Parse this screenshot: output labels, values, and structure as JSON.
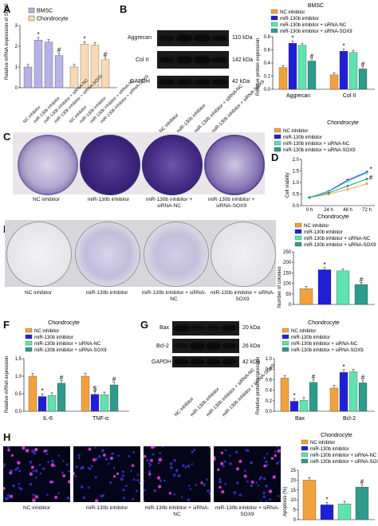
{
  "panels": {
    "A": {
      "label": "A",
      "legend": [
        "BMSC",
        "Chondrocyte"
      ],
      "colors": [
        "#b7b2e6",
        "#f7d9b3"
      ],
      "ylabel": "Relative mRNA expression of SOX9",
      "ticks": [
        "0",
        "1",
        "2",
        "3"
      ],
      "xlabels": [
        "NC inhibitor",
        "miR-130b inhibitor",
        "miR-130b inhibitor + siRNA-NC",
        "miR-130b inhibitor + siRNA-SOX9",
        "NC inhibitor",
        "miR-130b inhibitor",
        "miR-130b inhibitor + siRNA-NC",
        "miR-130b inhibitor + siRNA-SOX9"
      ],
      "marks": [
        "*",
        "#",
        "*",
        "#"
      ]
    },
    "B": {
      "label": "B",
      "blot_labels": [
        "Aggrecan",
        "Col II",
        "GAPDH"
      ],
      "kda": [
        "110 kDa",
        "142 kDa",
        "42 kDa"
      ],
      "lanes": [
        "NC inhibitor",
        "miR-130b inhibitor",
        "miR-130b inhibitor + siRNA-NC",
        "miR-130b inhibitor + siRNA-SOX9"
      ],
      "chart_title": "BMSC",
      "legend": [
        "NC inhibitor",
        "miR-130b inhibitor",
        "miR-130b inhibitor + siRNA-NC",
        "miR-130b inhibitor + siRNA-SOX9"
      ],
      "ylabel": "Relative protein expression",
      "ticks": [
        "0.0",
        "0.2",
        "0.4",
        "0.6",
        "0.8"
      ],
      "groups": [
        "Aggrecan",
        "Col II"
      ],
      "marks": [
        "*",
        "#",
        "*",
        "#"
      ]
    },
    "C": {
      "label": "C",
      "captions": [
        "NC inhibitor",
        "miR-130b inhibitor",
        "miR-130b inhibitor + siRNA-NC",
        "miR-130b inhibitor + siRNA-SOX9"
      ]
    },
    "D": {
      "label": "D",
      "title": "Chondrocyte",
      "legend": [
        "NC inhibitor",
        "miR-130b inhibitor",
        "miR-130b inhibitor + siRNA-NC",
        "miR-130b inhibitor + siRNA-SOX9"
      ],
      "ylabel": "Cell viability",
      "ticks": [
        "0.0",
        "0.5",
        "1.0",
        "1.5",
        "2.0"
      ],
      "xticks": [
        "0 h",
        "24 h",
        "48 h",
        "72 h"
      ],
      "marks": [
        "*",
        "#"
      ]
    },
    "E": {
      "label": "E",
      "captions": [
        "NC inhibitor",
        "miR-130b inhibitor",
        "miR-130b inhibitor + siRNA-NC",
        "miR-130b inhibitor + siRNA-SOX9"
      ],
      "chart_title": "Chondrocyte",
      "legend": [
        "NC inhibitor",
        "miR-130b inhibitor",
        "miR-130b inhibitor + siRNA-NC",
        "miR-130b inhibitor + siRNA-SOX9"
      ],
      "ylabel": "Number of colonies",
      "ticks": [
        "0",
        "50",
        "100",
        "150",
        "200",
        "250"
      ],
      "marks": [
        "*",
        "#"
      ]
    },
    "F": {
      "label": "F",
      "title": "Chondrocyte",
      "legend": [
        "NC inhibitor",
        "miR-130b inhibitor",
        "miR-130b inhibitor + siRNA-NC",
        "miR-130b inhibitor + siRNA-SOX9"
      ],
      "ylabel": "Relative mRNA expression",
      "ticks": [
        "0.0",
        "0.5",
        "1.0",
        "1.5"
      ],
      "groups": [
        "IL-6",
        "TNF-α"
      ],
      "marks": [
        "*",
        "#",
        "$",
        "#"
      ]
    },
    "G": {
      "label": "G",
      "blot_labels": [
        "Bax",
        "Bcl-2",
        "GAPDH"
      ],
      "kda": [
        "20 kDa",
        "26 kDa",
        "42 kDa"
      ],
      "lanes": [
        "NC inhibitor",
        "miR-130b inhibitor",
        "miR-130b inhibitor + siRNA-NC",
        "miR-130b inhibitor + siRNA-SOX9"
      ],
      "chart_title": "Chondrocyte",
      "legend": [
        "NC inhibitor",
        "miR-130b inhibitor",
        "miR-130b inhibitor + siRNA-NC",
        "miR-130b inhibitor + siRNA-SOX9"
      ],
      "ylabel": "Relative protein expression",
      "ticks": [
        "0.0",
        "0.2",
        "0.4",
        "0.6",
        "0.8",
        "1.0"
      ],
      "groups": [
        "Bax",
        "Bcl-2"
      ],
      "marks": [
        "*",
        "#",
        "*",
        "#"
      ]
    },
    "H": {
      "label": "H",
      "captions": [
        "NC inhibitor",
        "miR-130b inhibitor",
        "miR-130b inhibitor + siRNA-NC",
        "miR-130b inhibitor + siRNA-SOX9"
      ],
      "chart_title": "Chondrocyte",
      "legend": [
        "NC inhibitor",
        "miR-130b inhibitor",
        "miR-130b inhibitor + siRNA-NC",
        "miR-130b inhibitor + siRNA-SOX9"
      ],
      "ylabel": "Apoptosis (%)",
      "ticks": [
        "0",
        "5",
        "10",
        "15",
        "20",
        "25"
      ],
      "marks": [
        "*",
        "#"
      ]
    }
  },
  "colors": {
    "nc": "#f2a23c",
    "mir": "#1f1fd6",
    "mir_nc": "#5fe3b0",
    "mir_sox9": "#2e9c8c"
  },
  "chart_data": [
    {
      "type": "bar",
      "id": "A",
      "categories": [
        "NC inhibitor",
        "miR-130b inhibitor",
        "miR-130b inhibitor + siRNA-NC",
        "miR-130b inhibitor + siRNA-SOX9"
      ],
      "series": [
        {
          "name": "BMSC",
          "values": [
            1.0,
            2.3,
            2.2,
            1.55
          ]
        },
        {
          "name": "Chondrocyte",
          "values": [
            1.0,
            2.1,
            2.05,
            1.35
          ]
        }
      ],
      "ylabel": "Relative mRNA expression of SOX9",
      "ylim": [
        0,
        3
      ]
    },
    {
      "type": "bar",
      "id": "B",
      "title": "BMSC",
      "categories": [
        "Aggrecan",
        "Col II"
      ],
      "series": [
        {
          "name": "NC inhibitor",
          "values": [
            0.33,
            0.22
          ]
        },
        {
          "name": "miR-130b inhibitor",
          "values": [
            0.7,
            0.58
          ]
        },
        {
          "name": "miR-130b inhibitor + siRNA-NC",
          "values": [
            0.67,
            0.56
          ]
        },
        {
          "name": "miR-130b inhibitor + siRNA-SOX9",
          "values": [
            0.43,
            0.31
          ]
        }
      ],
      "ylabel": "Relative protein expression",
      "ylim": [
        0,
        0.8
      ]
    },
    {
      "type": "line",
      "id": "D",
      "title": "Chondrocyte",
      "x": [
        "0 h",
        "24 h",
        "48 h",
        "72 h"
      ],
      "series": [
        {
          "name": "NC inhibitor",
          "values": [
            0.35,
            0.5,
            0.7,
            0.95
          ]
        },
        {
          "name": "miR-130b inhibitor",
          "values": [
            0.35,
            0.62,
            1.1,
            1.45
          ]
        },
        {
          "name": "miR-130b inhibitor + siRNA-NC",
          "values": [
            0.35,
            0.6,
            1.05,
            1.4
          ]
        },
        {
          "name": "miR-130b inhibitor + siRNA-SOX9",
          "values": [
            0.35,
            0.55,
            0.85,
            1.15
          ]
        }
      ],
      "ylabel": "Cell viability",
      "ylim": [
        0,
        2
      ]
    },
    {
      "type": "bar",
      "id": "E",
      "title": "Chondrocyte",
      "categories": [
        "NC inhibitor",
        "miR-130b inhibitor",
        "miR-130b inhibitor + siRNA-NC",
        "miR-130b inhibitor + siRNA-SOX9"
      ],
      "values": [
        75,
        165,
        160,
        95
      ],
      "ylabel": "Number of colonies",
      "ylim": [
        0,
        250
      ]
    },
    {
      "type": "bar",
      "id": "F",
      "title": "Chondrocyte",
      "categories": [
        "IL-6",
        "TNF-α"
      ],
      "series": [
        {
          "name": "NC inhibitor",
          "values": [
            1.0,
            1.0
          ]
        },
        {
          "name": "miR-130b inhibitor",
          "values": [
            0.42,
            0.48
          ]
        },
        {
          "name": "miR-130b inhibitor + siRNA-NC",
          "values": [
            0.45,
            0.47
          ]
        },
        {
          "name": "miR-130b inhibitor + siRNA-SOX9",
          "values": [
            0.8,
            0.75
          ]
        }
      ],
      "ylabel": "Relative mRNA expression",
      "ylim": [
        0,
        1.5
      ]
    },
    {
      "type": "bar",
      "id": "G",
      "title": "Chondrocyte",
      "categories": [
        "Bax",
        "Bcl-2"
      ],
      "series": [
        {
          "name": "NC inhibitor",
          "values": [
            0.63,
            0.44
          ]
        },
        {
          "name": "miR-130b inhibitor",
          "values": [
            0.19,
            0.74
          ]
        },
        {
          "name": "miR-130b inhibitor + siRNA-NC",
          "values": [
            0.21,
            0.75
          ]
        },
        {
          "name": "miR-130b inhibitor + siRNA-SOX9",
          "values": [
            0.55,
            0.54
          ]
        }
      ],
      "ylabel": "Relative protein expression",
      "ylim": [
        0,
        1.0
      ]
    },
    {
      "type": "bar",
      "id": "H",
      "title": "Chondrocyte",
      "categories": [
        "NC inhibitor",
        "miR-130b inhibitor",
        "miR-130b inhibitor + siRNA-NC",
        "miR-130b inhibitor + siRNA-SOX9"
      ],
      "values": [
        20,
        7.5,
        8,
        16.5
      ],
      "ylabel": "Apoptosis (%)",
      "ylim": [
        0,
        25
      ]
    }
  ]
}
